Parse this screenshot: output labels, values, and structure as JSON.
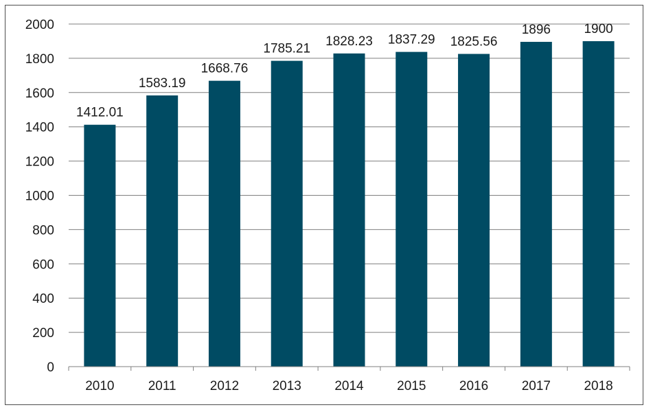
{
  "chart_data": {
    "type": "bar",
    "title": "",
    "xlabel": "",
    "ylabel": "",
    "categories": [
      "2010",
      "2011",
      "2012",
      "2013",
      "2014",
      "2015",
      "2016",
      "2017",
      "2018"
    ],
    "values": [
      1412.01,
      1583.19,
      1668.76,
      1785.21,
      1828.23,
      1837.29,
      1825.56,
      1896,
      1900
    ],
    "data_labels": [
      "1412.01",
      "1583.19",
      "1668.76",
      "1785.21",
      "1828.23",
      "1837.29",
      "1825.56",
      "1896",
      "1900"
    ],
    "ylim": [
      0,
      2000
    ],
    "yticks": [
      0,
      200,
      400,
      600,
      800,
      1000,
      1200,
      1400,
      1600,
      1800,
      2000
    ],
    "grid": true,
    "legend": "none",
    "bar_color": "#004b63",
    "grid_color": "#7f7f7f"
  }
}
